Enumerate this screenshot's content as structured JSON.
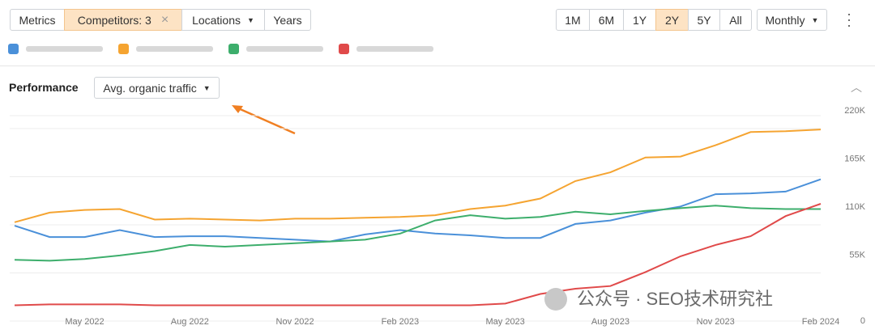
{
  "toolbar": {
    "filters": [
      "Metrics",
      "Competitors: 3",
      "Locations",
      "Years"
    ],
    "ranges": [
      "1M",
      "6M",
      "1Y",
      "2Y",
      "5Y",
      "All"
    ],
    "interval": "Monthly"
  },
  "panel": {
    "title": "Performance",
    "metric": "Avg. organic traffic"
  },
  "watermark": "公众号 · SEO技术研究社",
  "chart_data": {
    "type": "line",
    "categories": [
      null,
      null,
      "May 2022",
      null,
      null,
      "Aug 2022",
      null,
      null,
      "Nov 2022",
      null,
      null,
      "Feb 2023",
      null,
      null,
      "May 2023",
      null,
      null,
      "Aug 2023",
      null,
      null,
      "Nov 2023",
      null,
      null,
      "Feb 2024"
    ],
    "series": [
      {
        "color": "#4a90d9",
        "values": [
          109000,
          96000,
          96000,
          104000,
          96000,
          97000,
          97000,
          95000,
          93000,
          91000,
          99000,
          104000,
          100000,
          98000,
          95000,
          95000,
          111000,
          115000,
          124000,
          131000,
          145000,
          146000,
          148000,
          162000
        ]
      },
      {
        "color": "#f5a431",
        "values": [
          113000,
          124000,
          127000,
          128000,
          116000,
          117000,
          116000,
          115000,
          117000,
          117000,
          118000,
          119000,
          121000,
          128000,
          132000,
          140000,
          160000,
          170000,
          187000,
          188000,
          201000,
          216000,
          217000,
          219000
        ]
      },
      {
        "color": "#3dae6c",
        "values": [
          70000,
          69000,
          71000,
          75000,
          80000,
          87000,
          85000,
          87000,
          89000,
          91000,
          93000,
          100000,
          115000,
          121000,
          117000,
          119000,
          125000,
          122000,
          126000,
          129000,
          132000,
          129000,
          128000,
          128000
        ]
      },
      {
        "color": "#e04a4a",
        "values": [
          18000,
          19000,
          19000,
          19000,
          18000,
          18000,
          18000,
          18000,
          18000,
          18000,
          18000,
          18000,
          18000,
          18000,
          20000,
          31000,
          37000,
          40000,
          56000,
          74000,
          87000,
          97000,
          120000,
          134000
        ]
      }
    ],
    "ylim": [
      0,
      220000
    ],
    "yticks": [
      0,
      {
        "value": 55000,
        "label": "55K"
      },
      {
        "value": 110000,
        "label": "110K"
      },
      {
        "value": 165000,
        "label": "165K"
      },
      {
        "value": 220000,
        "label": "220K"
      }
    ],
    "grid": true
  }
}
